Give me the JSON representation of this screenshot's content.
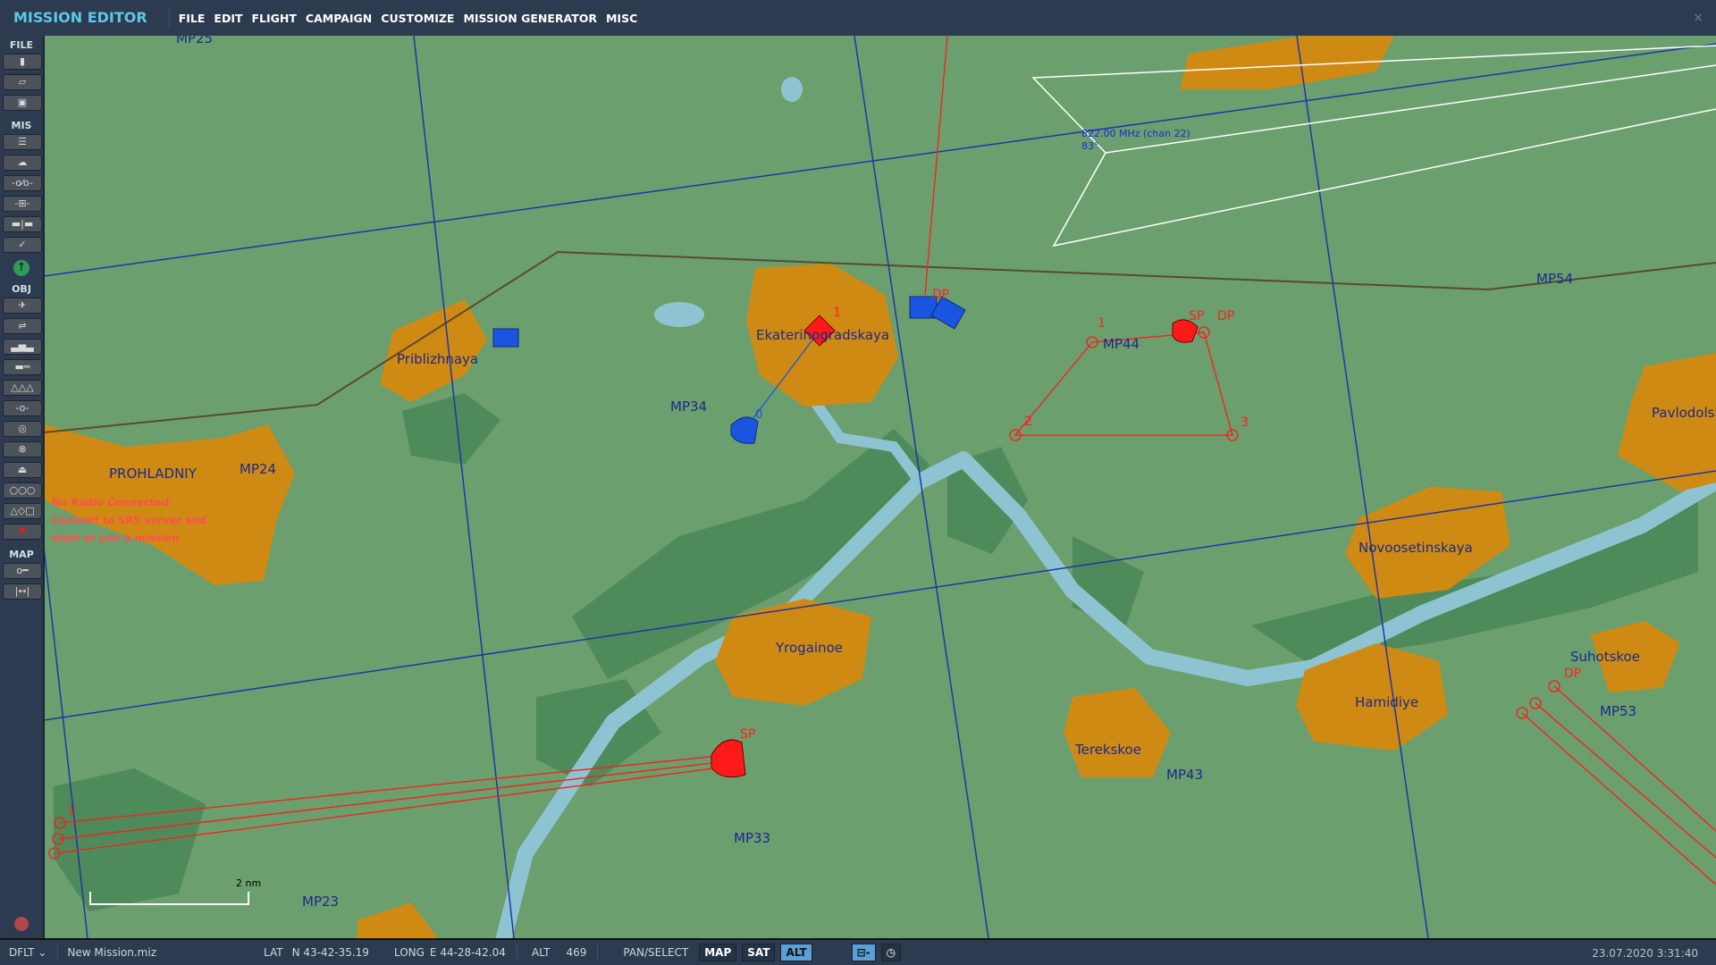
{
  "app": {
    "title": "MISSION EDITOR",
    "close": "×"
  },
  "menu": [
    "FILE",
    "EDIT",
    "FLIGHT",
    "CAMPAIGN",
    "CUSTOMIZE",
    "MISSION GENERATOR",
    "MISC"
  ],
  "sidebar": {
    "sections": {
      "file": "FILE",
      "mis": "MIS",
      "obj": "OBJ",
      "map": "MAP"
    },
    "file_icons": [
      "new-file-icon",
      "open-folder-icon",
      "save-icon"
    ],
    "mis_icons": [
      "briefing-icon",
      "weather-icon",
      "trigger-icon",
      "target-icon",
      "flag-icon",
      "check-icon"
    ],
    "obj_icons": [
      "airplane-icon",
      "helicopter-icon",
      "ship-icon",
      "tank-icon",
      "bridge-icon",
      "waypoint-icon",
      "zone-icon",
      "static-icon",
      "template-icon",
      "rings-icon",
      "shapes-icon",
      "delete-icon"
    ],
    "map_icons": [
      "key-icon",
      "ruler-icon"
    ]
  },
  "srs": {
    "line1": "No Radio Connected",
    "line2": "Connect to SRS server and",
    "line3": "start or join a mission"
  },
  "map": {
    "labels": {
      "mp25": "MP25",
      "priblizhnaya": "Priblizhnaya",
      "ekaterin": "Ekaterinogradskaya",
      "mp34": "MP34",
      "mp44": "MP44",
      "mp54": "MP54",
      "pavlodolskaya": "Pavlodolskaya",
      "prohladniy": "PROHLADNIY",
      "mp24": "MP24",
      "novoosetinskaya": "Novoosetinskaya",
      "yrogainoe": "Yrogainoe",
      "suhotskoe": "Suhotskoe",
      "hamidiye": "Hamidiye",
      "mp53": "MP53",
      "terekskoe": "Terekskoe",
      "mp43": "MP43",
      "mp33": "MP33",
      "mp23": "MP23"
    },
    "beacon": {
      "freq": "822.00 MHz (chan 22)",
      "bearing": "83°"
    },
    "scale": "2 nm",
    "waypoints": {
      "wp1": "1",
      "wp2": "2",
      "wp3": "3",
      "sp": "SP",
      "dp": "DP",
      "wp0": "0"
    },
    "colors": {
      "ground": "#6b9f6e",
      "town": "#cf8a14",
      "river": "#8ec4d2",
      "forest": "#4e8a5a",
      "grid": "#2035a8",
      "red": "#ff1a1a",
      "blue": "#1a55e0"
    }
  },
  "status": {
    "profile": "DFLT",
    "file": "New Mission.miz",
    "lat_label": "LAT",
    "lat": "N 43-42-35.19",
    "long_label": "LONG",
    "long": "E 44-28-42.04",
    "alt_label": "ALT",
    "alt": "469",
    "mode": "PAN/SELECT",
    "map": "MAP",
    "sat": "SAT",
    "altbtn": "ALT",
    "datetime": "23.07.2020 3:31:40"
  }
}
